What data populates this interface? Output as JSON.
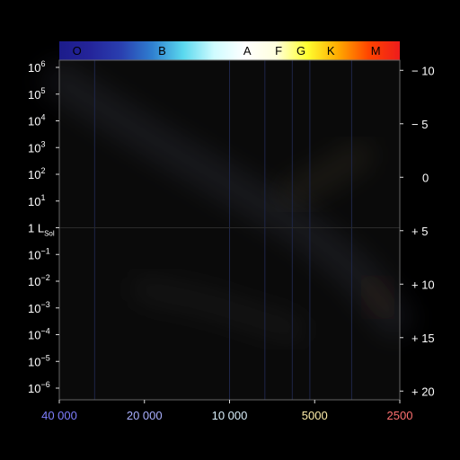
{
  "chart_data": {
    "type": "scatter",
    "spectral_classes": [
      {
        "label": "O",
        "color": "#000000"
      },
      {
        "label": "B",
        "color": "#000000"
      },
      {
        "label": "A",
        "color": "#000000"
      },
      {
        "label": "F",
        "color": "#000000"
      },
      {
        "label": "G",
        "color": "#000000"
      },
      {
        "label": "K",
        "color": "#000000"
      },
      {
        "label": "M",
        "color": "#000000"
      }
    ],
    "colorbar": {
      "stops": [
        "#1c1c8a",
        "#24249a",
        "#2a3fb0",
        "#2f7fd0",
        "#5ad8ee",
        "#cffcff",
        "#ffffff",
        "#ffffdd",
        "#ffff30",
        "#ffaa00",
        "#ff4400",
        "#ee1c1c"
      ]
    },
    "left_axis": {
      "ticks": [
        {
          "value": 6,
          "base": "10",
          "sup": "6"
        },
        {
          "value": 5,
          "base": "10",
          "sup": "5"
        },
        {
          "value": 4,
          "base": "10",
          "sup": "4"
        },
        {
          "value": 3,
          "base": "10",
          "sup": "3"
        },
        {
          "value": 2,
          "base": "10",
          "sup": "2"
        },
        {
          "value": 1,
          "base": "10",
          "sup": "1"
        },
        {
          "value": 0,
          "base": "1 L",
          "sub": "Sol"
        },
        {
          "value": -1,
          "base": "10",
          "sup": "−1"
        },
        {
          "value": -2,
          "base": "10",
          "sup": "−2"
        },
        {
          "value": -3,
          "base": "10",
          "sup": "−3"
        },
        {
          "value": -4,
          "base": "10",
          "sup": "−4"
        },
        {
          "value": -5,
          "base": "10",
          "sup": "−5"
        },
        {
          "value": -6,
          "base": "10",
          "sup": "−6"
        }
      ],
      "range": [
        6,
        -6
      ],
      "scale": "log luminosity (L/L_Sol)"
    },
    "right_axis": {
      "ticks": [
        {
          "value": -10,
          "label": "− 10"
        },
        {
          "value": -5,
          "label": "− 5"
        },
        {
          "value": 0,
          "label": "0"
        },
        {
          "value": 5,
          "label": "+ 5"
        },
        {
          "value": 10,
          "label": "+ 10"
        },
        {
          "value": 15,
          "label": "+ 15"
        },
        {
          "value": 20,
          "label": "+ 20"
        }
      ]
    },
    "x_axis": {
      "scale": "log",
      "range": [
        40000,
        2500
      ],
      "ticks": [
        {
          "value": 40000,
          "label": "40 000",
          "color": "#7f7fff"
        },
        {
          "value": 20000,
          "label": "20 000",
          "color": "#aab0ff"
        },
        {
          "value": 10000,
          "label": "10 000",
          "color": "#d8eefa"
        },
        {
          "value": 5000,
          "label": "5000",
          "color": "#ffeeaa"
        },
        {
          "value": 2500,
          "label": "2500",
          "color": "#ff7070"
        }
      ],
      "class_boundaries": [
        30000,
        10000,
        7500,
        6000,
        5200,
        3700
      ]
    },
    "regions": [
      {
        "name": "main sequence",
        "points": [
          [
            40000,
            5.5
          ],
          [
            20000,
            3.5
          ],
          [
            10000,
            1.6
          ],
          [
            6000,
            0.2
          ],
          [
            5000,
            -0.4
          ],
          [
            3700,
            -1.5
          ],
          [
            3000,
            -2.6
          ],
          [
            2600,
            -3.4
          ]
        ],
        "color": "#9da8d8"
      },
      {
        "name": "white dwarfs",
        "points": [
          [
            20000,
            -2.3
          ],
          [
            12000,
            -2.8
          ],
          [
            8000,
            -3.4
          ],
          [
            6000,
            -3.8
          ]
        ],
        "color": "#777777"
      },
      {
        "name": "giants",
        "points": [
          [
            6000,
            1.3
          ],
          [
            5000,
            1.7
          ],
          [
            4000,
            2.3
          ],
          [
            3500,
            2.7
          ]
        ],
        "color": "#c7b070"
      },
      {
        "name": "red dwarfs",
        "points": [
          [
            3200,
            -2.2
          ],
          [
            2800,
            -3.0
          ]
        ],
        "color": "#9a3010"
      }
    ]
  }
}
